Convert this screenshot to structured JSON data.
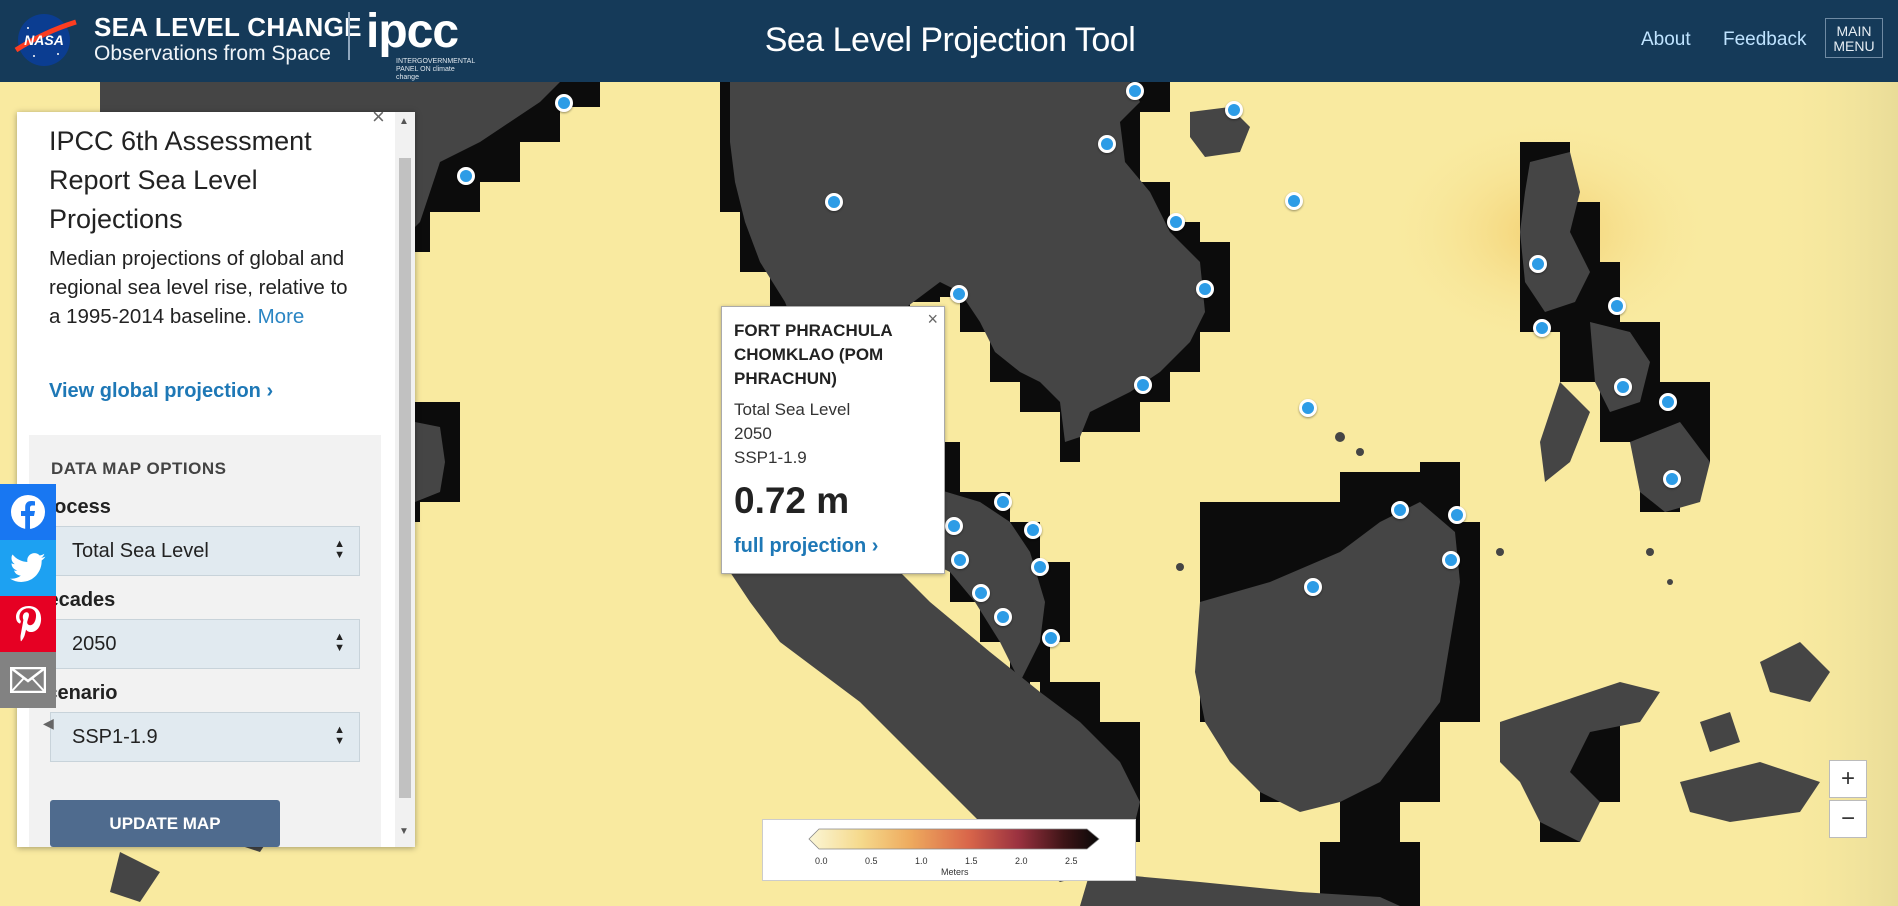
{
  "header": {
    "nasa_logo": "NASA",
    "brand_title": "SEA LEVEL CHANGE",
    "brand_subtitle": "Observations from Space",
    "ipcc_logo": "ipcc",
    "ipcc_sub": "INTERGOVERNMENTAL PANEL ON climate change",
    "app_title": "Sea Level Projection Tool",
    "nav": {
      "about": "About",
      "feedback": "Feedback"
    },
    "main_menu": {
      "line1": "MAIN",
      "line2": "MENU"
    }
  },
  "panel": {
    "close": "×",
    "title": "IPCC 6th Assessment Report Sea Level Projections",
    "description": "Median projections of global and regional sea level rise, relative to a 1995-2014 baseline.",
    "more": "More",
    "view_global": "View global projection ›",
    "options_title": "DATA MAP OPTIONS",
    "process": {
      "label": "Process",
      "value": "Total Sea Level"
    },
    "decades": {
      "label": "Decades",
      "value": "2050"
    },
    "scenario": {
      "label": "Scenario",
      "value": "SSP1-1.9"
    },
    "update_button": "UPDATE MAP"
  },
  "social": [
    {
      "name": "facebook",
      "icon": "facebook-icon",
      "color": "#1877f2"
    },
    {
      "name": "twitter",
      "icon": "twitter-icon",
      "color": "#1da1f2"
    },
    {
      "name": "pinterest",
      "icon": "pinterest-icon",
      "color": "#e60023"
    },
    {
      "name": "email",
      "icon": "mail-icon",
      "color": "#828282"
    }
  ],
  "popup": {
    "close": "×",
    "station": "FORT PHRACHULA CHOMKLAO (POM PHRACHUN)",
    "process": "Total Sea Level",
    "decade": "2050",
    "scenario": "SSP1-1.9",
    "value": "0.72 m",
    "link": "full projection ›"
  },
  "legend": {
    "ticks": [
      "0.0",
      "0.5",
      "1.0",
      "1.5",
      "2.0",
      "2.5"
    ],
    "units": "Meters"
  },
  "zoom": {
    "in": "+",
    "out": "−"
  },
  "colors": {
    "header_bg": "#153a59",
    "ocean_light": "#f9eaa0",
    "land": "#454545",
    "marker": "#2d9ce6",
    "link": "#1e78b6",
    "update_button": "#4f6b8e"
  }
}
